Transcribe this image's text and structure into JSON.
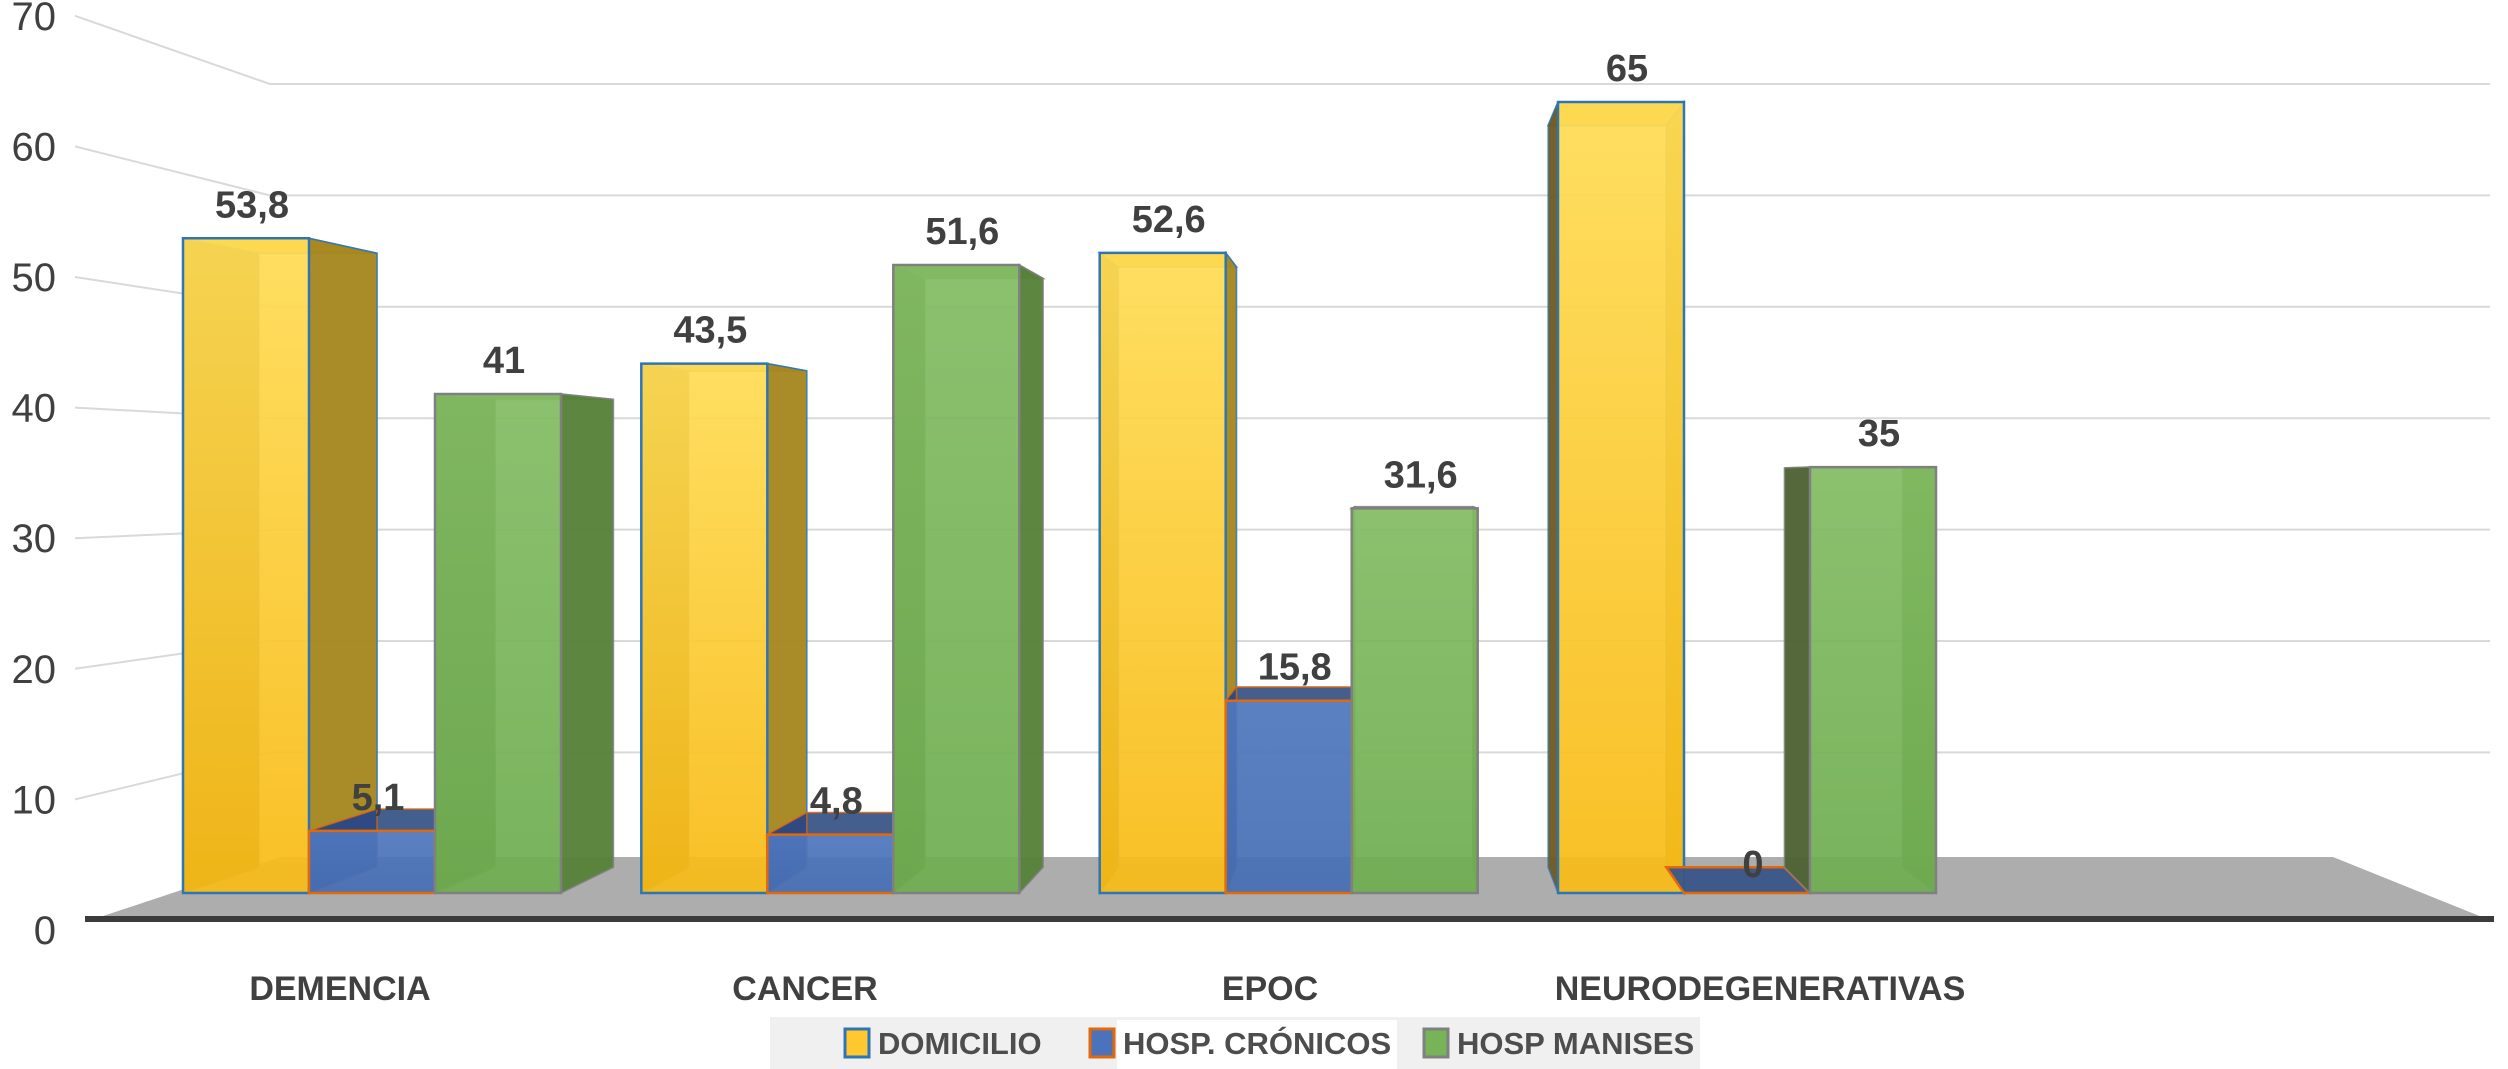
{
  "chart_data": {
    "type": "bar",
    "style": "3d-column-perspective",
    "title": "",
    "categories": [
      "DEMENCIA",
      "CANCER",
      "EPOC",
      "NEURODEGENERATIVAS"
    ],
    "series": [
      {
        "name": "DOMICILIO",
        "values": [
          53.8,
          43.5,
          52.6,
          65
        ],
        "value_labels": [
          "53,8",
          "43,5",
          "52,6",
          "65"
        ],
        "front_color_top": "#FFDC55",
        "front_color_bottom": "#F8BB16",
        "side_color": "#A5871E",
        "side_dark_color": "#6E5B22",
        "top_color": "#E3B125",
        "outline_color": "#2E75B6",
        "swatch_color": "#FFC82E"
      },
      {
        "name": "HOSP. CRÓNICOS",
        "values": [
          5.1,
          4.8,
          15.8,
          0
        ],
        "value_labels": [
          "5,1",
          "4,8",
          "15,8",
          "0"
        ],
        "front_color_top": "#4F77BE",
        "front_color_bottom": "#466EB5",
        "side_color": "#3A5E9E",
        "side_dark_color": "#2F4A80",
        "top_color": "#3A5688",
        "outline_color": "#E2690B",
        "swatch_color": "#4B73BB"
      },
      {
        "name": "HOSP MANISES",
        "values": [
          41,
          51.6,
          31.6,
          35
        ],
        "value_labels": [
          "41",
          "51,6",
          "31,6",
          "35"
        ],
        "front_color_top": "#83BC63",
        "front_color_bottom": "#6FAD50",
        "side_color": "#568139",
        "side_dark_color": "#4E6234",
        "top_color": "#659D49",
        "outline_color": "#808080",
        "swatch_color": "#76B457"
      }
    ],
    "y_axis": {
      "min": 0,
      "max": 70,
      "step": 10,
      "tick_labels": [
        "0",
        "10",
        "20",
        "30",
        "40",
        "50",
        "60",
        "70"
      ]
    },
    "grid": true,
    "legend_position": "bottom"
  },
  "legend": {
    "items": [
      {
        "label": "DOMICILIO"
      },
      {
        "label": "HOSP. CRÓNICOS"
      },
      {
        "label": "HOSP MANISES"
      }
    ]
  },
  "colors": {
    "background": "#FFFFFF",
    "gridline": "#D9D9D9",
    "floor": "#ADADAD",
    "axis_line": "#3B3B3B",
    "text": "#404040",
    "legend_background": "#F0F0F0",
    "legend_highlight": "#FFFFFF"
  }
}
